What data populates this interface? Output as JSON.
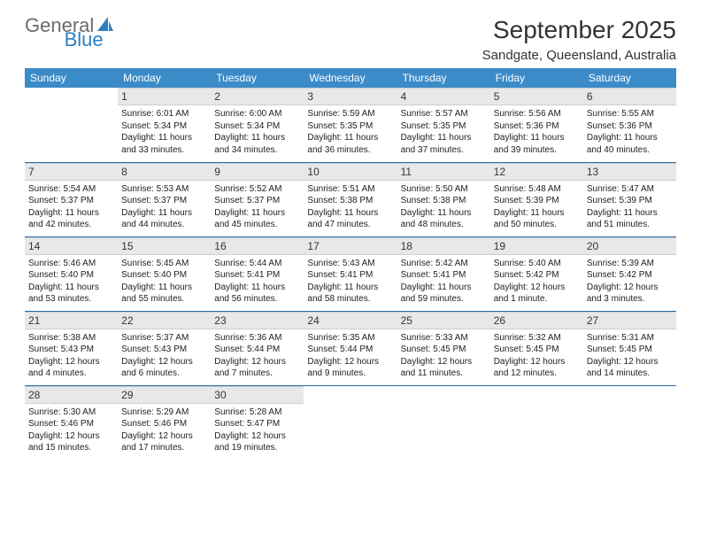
{
  "logo": {
    "text1": "General",
    "text2": "Blue",
    "general_color": "#6b6b6b",
    "blue_color": "#2d7fc1",
    "sail_color": "#2d7fc1"
  },
  "title": "September 2025",
  "location": "Sandgate, Queensland, Australia",
  "header_bg": "#3b8bc8",
  "header_fg": "#ffffff",
  "daynum_bg": "#e8e8e8",
  "week_divider": "#2d6aa0",
  "days_of_week": [
    "Sunday",
    "Monday",
    "Tuesday",
    "Wednesday",
    "Thursday",
    "Friday",
    "Saturday"
  ],
  "weeks": [
    [
      null,
      {
        "n": "1",
        "sr": "Sunrise: 6:01 AM",
        "ss": "Sunset: 5:34 PM",
        "d1": "Daylight: 11 hours",
        "d2": "and 33 minutes."
      },
      {
        "n": "2",
        "sr": "Sunrise: 6:00 AM",
        "ss": "Sunset: 5:34 PM",
        "d1": "Daylight: 11 hours",
        "d2": "and 34 minutes."
      },
      {
        "n": "3",
        "sr": "Sunrise: 5:59 AM",
        "ss": "Sunset: 5:35 PM",
        "d1": "Daylight: 11 hours",
        "d2": "and 36 minutes."
      },
      {
        "n": "4",
        "sr": "Sunrise: 5:57 AM",
        "ss": "Sunset: 5:35 PM",
        "d1": "Daylight: 11 hours",
        "d2": "and 37 minutes."
      },
      {
        "n": "5",
        "sr": "Sunrise: 5:56 AM",
        "ss": "Sunset: 5:36 PM",
        "d1": "Daylight: 11 hours",
        "d2": "and 39 minutes."
      },
      {
        "n": "6",
        "sr": "Sunrise: 5:55 AM",
        "ss": "Sunset: 5:36 PM",
        "d1": "Daylight: 11 hours",
        "d2": "and 40 minutes."
      }
    ],
    [
      {
        "n": "7",
        "sr": "Sunrise: 5:54 AM",
        "ss": "Sunset: 5:37 PM",
        "d1": "Daylight: 11 hours",
        "d2": "and 42 minutes."
      },
      {
        "n": "8",
        "sr": "Sunrise: 5:53 AM",
        "ss": "Sunset: 5:37 PM",
        "d1": "Daylight: 11 hours",
        "d2": "and 44 minutes."
      },
      {
        "n": "9",
        "sr": "Sunrise: 5:52 AM",
        "ss": "Sunset: 5:37 PM",
        "d1": "Daylight: 11 hours",
        "d2": "and 45 minutes."
      },
      {
        "n": "10",
        "sr": "Sunrise: 5:51 AM",
        "ss": "Sunset: 5:38 PM",
        "d1": "Daylight: 11 hours",
        "d2": "and 47 minutes."
      },
      {
        "n": "11",
        "sr": "Sunrise: 5:50 AM",
        "ss": "Sunset: 5:38 PM",
        "d1": "Daylight: 11 hours",
        "d2": "and 48 minutes."
      },
      {
        "n": "12",
        "sr": "Sunrise: 5:48 AM",
        "ss": "Sunset: 5:39 PM",
        "d1": "Daylight: 11 hours",
        "d2": "and 50 minutes."
      },
      {
        "n": "13",
        "sr": "Sunrise: 5:47 AM",
        "ss": "Sunset: 5:39 PM",
        "d1": "Daylight: 11 hours",
        "d2": "and 51 minutes."
      }
    ],
    [
      {
        "n": "14",
        "sr": "Sunrise: 5:46 AM",
        "ss": "Sunset: 5:40 PM",
        "d1": "Daylight: 11 hours",
        "d2": "and 53 minutes."
      },
      {
        "n": "15",
        "sr": "Sunrise: 5:45 AM",
        "ss": "Sunset: 5:40 PM",
        "d1": "Daylight: 11 hours",
        "d2": "and 55 minutes."
      },
      {
        "n": "16",
        "sr": "Sunrise: 5:44 AM",
        "ss": "Sunset: 5:41 PM",
        "d1": "Daylight: 11 hours",
        "d2": "and 56 minutes."
      },
      {
        "n": "17",
        "sr": "Sunrise: 5:43 AM",
        "ss": "Sunset: 5:41 PM",
        "d1": "Daylight: 11 hours",
        "d2": "and 58 minutes."
      },
      {
        "n": "18",
        "sr": "Sunrise: 5:42 AM",
        "ss": "Sunset: 5:41 PM",
        "d1": "Daylight: 11 hours",
        "d2": "and 59 minutes."
      },
      {
        "n": "19",
        "sr": "Sunrise: 5:40 AM",
        "ss": "Sunset: 5:42 PM",
        "d1": "Daylight: 12 hours",
        "d2": "and 1 minute."
      },
      {
        "n": "20",
        "sr": "Sunrise: 5:39 AM",
        "ss": "Sunset: 5:42 PM",
        "d1": "Daylight: 12 hours",
        "d2": "and 3 minutes."
      }
    ],
    [
      {
        "n": "21",
        "sr": "Sunrise: 5:38 AM",
        "ss": "Sunset: 5:43 PM",
        "d1": "Daylight: 12 hours",
        "d2": "and 4 minutes."
      },
      {
        "n": "22",
        "sr": "Sunrise: 5:37 AM",
        "ss": "Sunset: 5:43 PM",
        "d1": "Daylight: 12 hours",
        "d2": "and 6 minutes."
      },
      {
        "n": "23",
        "sr": "Sunrise: 5:36 AM",
        "ss": "Sunset: 5:44 PM",
        "d1": "Daylight: 12 hours",
        "d2": "and 7 minutes."
      },
      {
        "n": "24",
        "sr": "Sunrise: 5:35 AM",
        "ss": "Sunset: 5:44 PM",
        "d1": "Daylight: 12 hours",
        "d2": "and 9 minutes."
      },
      {
        "n": "25",
        "sr": "Sunrise: 5:33 AM",
        "ss": "Sunset: 5:45 PM",
        "d1": "Daylight: 12 hours",
        "d2": "and 11 minutes."
      },
      {
        "n": "26",
        "sr": "Sunrise: 5:32 AM",
        "ss": "Sunset: 5:45 PM",
        "d1": "Daylight: 12 hours",
        "d2": "and 12 minutes."
      },
      {
        "n": "27",
        "sr": "Sunrise: 5:31 AM",
        "ss": "Sunset: 5:45 PM",
        "d1": "Daylight: 12 hours",
        "d2": "and 14 minutes."
      }
    ],
    [
      {
        "n": "28",
        "sr": "Sunrise: 5:30 AM",
        "ss": "Sunset: 5:46 PM",
        "d1": "Daylight: 12 hours",
        "d2": "and 15 minutes."
      },
      {
        "n": "29",
        "sr": "Sunrise: 5:29 AM",
        "ss": "Sunset: 5:46 PM",
        "d1": "Daylight: 12 hours",
        "d2": "and 17 minutes."
      },
      {
        "n": "30",
        "sr": "Sunrise: 5:28 AM",
        "ss": "Sunset: 5:47 PM",
        "d1": "Daylight: 12 hours",
        "d2": "and 19 minutes."
      },
      null,
      null,
      null,
      null
    ]
  ]
}
